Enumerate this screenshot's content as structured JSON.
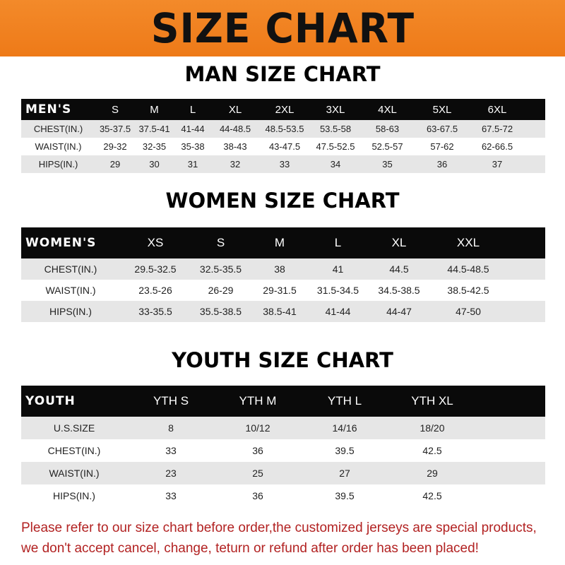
{
  "banner": {
    "title": "SIZE CHART",
    "color": "#f08020"
  },
  "men": {
    "title": "MAN SIZE CHART",
    "header": [
      "MEN'S",
      "S",
      "M",
      "L",
      "XL",
      "2XL",
      "3XL",
      "4XL",
      "5XL",
      "6XL"
    ],
    "rows": [
      [
        "CHEST(IN.)",
        "35-37.5",
        "37.5-41",
        "41-44",
        "44-48.5",
        "48.5-53.5",
        "53.5-58",
        "58-63",
        "63-67.5",
        "67.5-72"
      ],
      [
        "WAIST(IN.)",
        "29-32",
        "32-35",
        "35-38",
        "38-43",
        "43-47.5",
        "47.5-52.5",
        "52.5-57",
        "57-62",
        "62-66.5"
      ],
      [
        "HIPS(IN.)",
        "29",
        "30",
        "31",
        "32",
        "33",
        "34",
        "35",
        "36",
        "37"
      ]
    ]
  },
  "women": {
    "title": "WOMEN SIZE CHART",
    "header": [
      "WOMEN'S",
      "XS",
      "S",
      "M",
      "L",
      "XL",
      "XXL"
    ],
    "rows": [
      [
        "CHEST(IN.)",
        "29.5-32.5",
        "32.5-35.5",
        "38",
        "41",
        "44.5",
        "44.5-48.5"
      ],
      [
        "WAIST(IN.)",
        "23.5-26",
        "26-29",
        "29-31.5",
        "31.5-34.5",
        "34.5-38.5",
        "38.5-42.5"
      ],
      [
        "HIPS(IN.)",
        "33-35.5",
        "35.5-38.5",
        "38.5-41",
        "41-44",
        "44-47",
        "47-50"
      ]
    ]
  },
  "youth": {
    "title": "YOUTH SIZE CHART",
    "header": [
      "YOUTH",
      "YTH S",
      "YTH M",
      "YTH L",
      "YTH XL"
    ],
    "rows": [
      [
        "U.S.SIZE",
        "8",
        "10/12",
        "14/16",
        "18/20"
      ],
      [
        "CHEST(IN.)",
        "33",
        "36",
        "39.5",
        "42.5"
      ],
      [
        "WAIST(IN.)",
        "23",
        "25",
        "27",
        "29"
      ],
      [
        "HIPS(IN.)",
        "33",
        "36",
        "39.5",
        "42.5"
      ]
    ]
  },
  "note": {
    "line1": "Please refer to our size chart before order,the customized jerseys are special products,",
    "line2": "we don't accept cancel, change, teturn or refund after order has been placed!",
    "color": "#b22222"
  }
}
